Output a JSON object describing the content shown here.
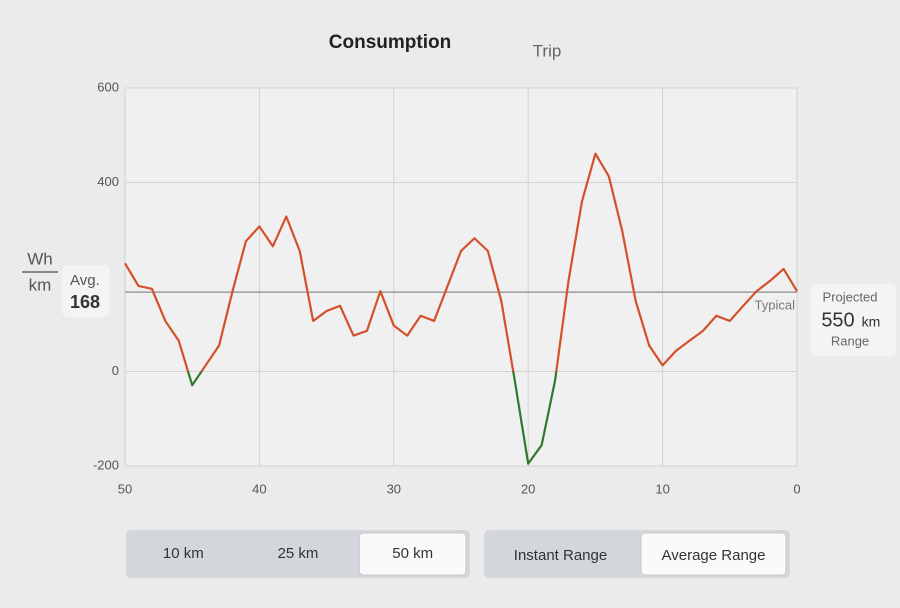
{
  "tabs": [
    "Consumption",
    "Trip"
  ],
  "chart_data": {
    "type": "line",
    "unit_top": "Wh",
    "unit_bottom": "km",
    "x": [
      50,
      49,
      48,
      47,
      46,
      45,
      44,
      43,
      42,
      41,
      40,
      39,
      38,
      37,
      36,
      35,
      34,
      33,
      32,
      31,
      30,
      29,
      28,
      27,
      26,
      25,
      24,
      23,
      22,
      21,
      20,
      19,
      18,
      17,
      16,
      15,
      14,
      13,
      12,
      11,
      10,
      9,
      8,
      7,
      6,
      5,
      4,
      3,
      2,
      1,
      0
    ],
    "values": [
      229,
      181,
      175,
      107,
      65,
      -29,
      13,
      55,
      170,
      276,
      307,
      265,
      328,
      255,
      107,
      128,
      139,
      76,
      86,
      170,
      97,
      76,
      118,
      107,
      181,
      255,
      282,
      255,
      149,
      -19,
      -195,
      -156,
      -19,
      192,
      360,
      461,
      413,
      297,
      149,
      55,
      13,
      44,
      65,
      86,
      118,
      107,
      139,
      170,
      192,
      217,
      170
    ],
    "color": "#d4502a",
    "negative_color": "#2f7a2f",
    "xlim": [
      50,
      0
    ],
    "xticks": [
      50,
      40,
      30,
      20,
      10,
      0
    ],
    "ylim": [
      -200,
      600
    ],
    "yticks": [
      -200,
      0,
      400,
      600
    ],
    "grid": true,
    "average": {
      "label": "Avg.",
      "value": 168
    },
    "typical_label": "Typical"
  },
  "projected": {
    "label": "Projected",
    "value": 550,
    "unit": "km",
    "sublabel": "Range"
  },
  "distance_buttons": [
    "10 km",
    "25 km",
    "50 km"
  ],
  "selected_distance": 2,
  "range_buttons": [
    "Instant Range",
    "Average Range"
  ],
  "selected_range": 1
}
